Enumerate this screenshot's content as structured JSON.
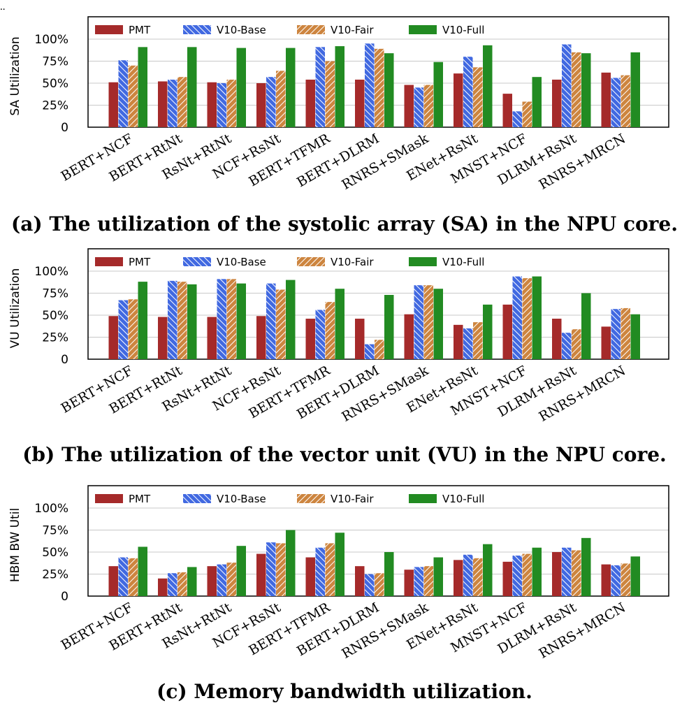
{
  "top_marker": "..",
  "colors": {
    "PMT": "#a52a2a",
    "V10-Base": "#4169e1",
    "V10-Fair": "#cd853f",
    "V10-Full": "#228b22"
  },
  "chart_data": [
    {
      "type": "bar",
      "caption": "(a) The utilization of the systolic array (SA) in the NPU core.",
      "ylabel": "SA Utilization",
      "ylim": [
        0,
        100
      ],
      "yticks": [
        "0",
        "25%",
        "50%",
        "75%",
        "100%"
      ],
      "grid": true,
      "legend_position": "top",
      "categories": [
        "BERT+NCF",
        "BERT+RtNt",
        "RsNt+RtNt",
        "NCF+RsNt",
        "BERT+TFMR",
        "BERT+DLRM",
        "RNRS+SMask",
        "ENet+RsNt",
        "MNST+NCF",
        "DLRM+RsNt",
        "RNRS+MRCN"
      ],
      "series": [
        {
          "name": "PMT",
          "values": [
            51,
            52,
            51,
            50,
            54,
            54,
            48,
            61,
            38,
            54,
            62
          ]
        },
        {
          "name": "V10-Base",
          "values": [
            76,
            54,
            50,
            57,
            91,
            95,
            45,
            80,
            18,
            94,
            56
          ]
        },
        {
          "name": "V10-Fair",
          "values": [
            70,
            57,
            54,
            64,
            75,
            89,
            48,
            68,
            29,
            85,
            59
          ]
        },
        {
          "name": "V10-Full",
          "values": [
            91,
            91,
            90,
            90,
            92,
            84,
            74,
            93,
            57,
            84,
            85
          ]
        }
      ]
    },
    {
      "type": "bar",
      "caption": "(b) The utilization of the vector unit (VU) in the NPU core.",
      "ylabel": "VU Utilization",
      "ylim": [
        0,
        100
      ],
      "yticks": [
        "0",
        "25%",
        "50%",
        "75%",
        "100%"
      ],
      "grid": true,
      "legend_position": "top",
      "categories": [
        "BERT+NCF",
        "BERT+RtNt",
        "RsNt+RtNt",
        "NCF+RsNt",
        "BERT+TFMR",
        "BERT+DLRM",
        "RNRS+SMask",
        "ENet+RsNt",
        "MNST+NCF",
        "DLRM+RsNt",
        "RNRS+MRCN"
      ],
      "series": [
        {
          "name": "PMT",
          "values": [
            49,
            48,
            48,
            49,
            46,
            46,
            51,
            39,
            62,
            46,
            37
          ]
        },
        {
          "name": "V10-Base",
          "values": [
            67,
            89,
            91,
            86,
            56,
            17,
            84,
            35,
            94,
            30,
            57
          ]
        },
        {
          "name": "V10-Fair",
          "values": [
            68,
            88,
            91,
            79,
            65,
            22,
            84,
            42,
            92,
            34,
            58
          ]
        },
        {
          "name": "V10-Full",
          "values": [
            88,
            85,
            86,
            90,
            80,
            73,
            80,
            62,
            94,
            75,
            51
          ]
        }
      ]
    },
    {
      "type": "bar",
      "caption": "(c) Memory bandwidth utilization.",
      "ylabel": "HBM BW Util",
      "ylim": [
        0,
        100
      ],
      "yticks": [
        "0",
        "25%",
        "50%",
        "75%",
        "100%"
      ],
      "grid": true,
      "legend_position": "top",
      "categories": [
        "BERT+NCF",
        "BERT+RtNt",
        "RsNt+RtNt",
        "NCF+RsNt",
        "BERT+TFMR",
        "BERT+DLRM",
        "RNRS+SMask",
        "ENet+RsNt",
        "MNST+NCF",
        "DLRM+RsNt",
        "RNRS+MRCN"
      ],
      "series": [
        {
          "name": "PMT",
          "values": [
            34,
            20,
            34,
            48,
            44,
            34,
            30,
            41,
            39,
            50,
            36
          ]
        },
        {
          "name": "V10-Base",
          "values": [
            44,
            26,
            36,
            61,
            55,
            25,
            33,
            47,
            46,
            55,
            35
          ]
        },
        {
          "name": "V10-Fair",
          "values": [
            43,
            27,
            38,
            60,
            60,
            26,
            34,
            43,
            48,
            52,
            37
          ]
        },
        {
          "name": "V10-Full",
          "values": [
            56,
            33,
            57,
            75,
            72,
            50,
            44,
            59,
            55,
            66,
            45
          ]
        }
      ]
    }
  ]
}
